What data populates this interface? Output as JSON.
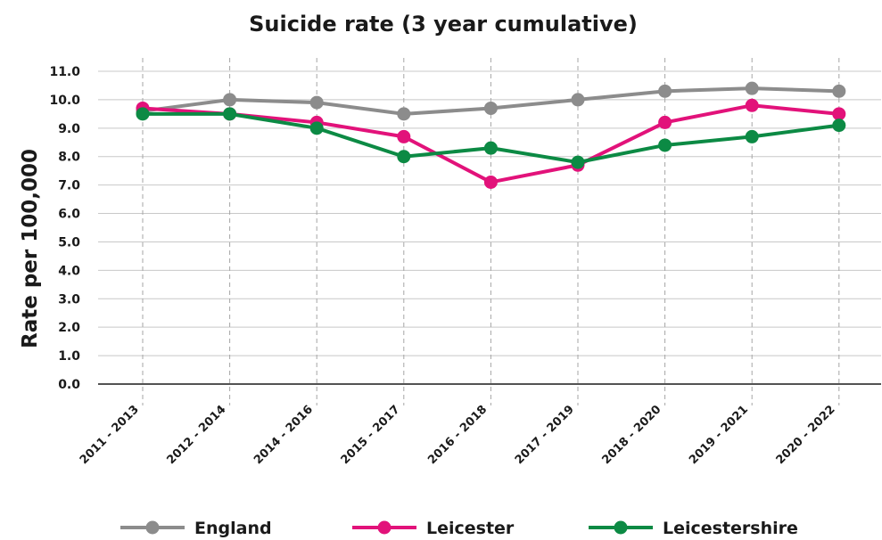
{
  "chart_data": {
    "type": "line",
    "title": "Suicide rate (3 year cumulative)",
    "xlabel": "",
    "ylabel": "Rate per 100,000",
    "ylim": [
      0,
      11
    ],
    "yticks": [
      "0.0",
      "1.0",
      "2.0",
      "3.0",
      "4.0",
      "5.0",
      "6.0",
      "7.0",
      "8.0",
      "9.0",
      "10.0",
      "11.0"
    ],
    "categories": [
      "2011 - 2013",
      "2012 - 2014",
      "2014 - 2016",
      "2015 - 2017",
      "2016 - 2018",
      "2017 - 2019",
      "2018 - 2020",
      "2019 - 2021",
      "2020 - 2022"
    ],
    "grid": true,
    "legend_position": "bottom",
    "series": [
      {
        "name": "England",
        "color": "#8c8c8c",
        "values": [
          9.6,
          10.0,
          9.9,
          9.5,
          9.7,
          10.0,
          10.3,
          10.4,
          10.3
        ]
      },
      {
        "name": "Leicester",
        "color": "#e2127a",
        "values": [
          9.7,
          9.5,
          9.2,
          8.7,
          7.1,
          7.7,
          9.2,
          9.8,
          9.5
        ]
      },
      {
        "name": "Leicestershire",
        "color": "#0c8a44",
        "values": [
          9.5,
          9.5,
          9.0,
          8.0,
          8.3,
          7.8,
          8.4,
          8.7,
          9.1
        ]
      }
    ]
  }
}
